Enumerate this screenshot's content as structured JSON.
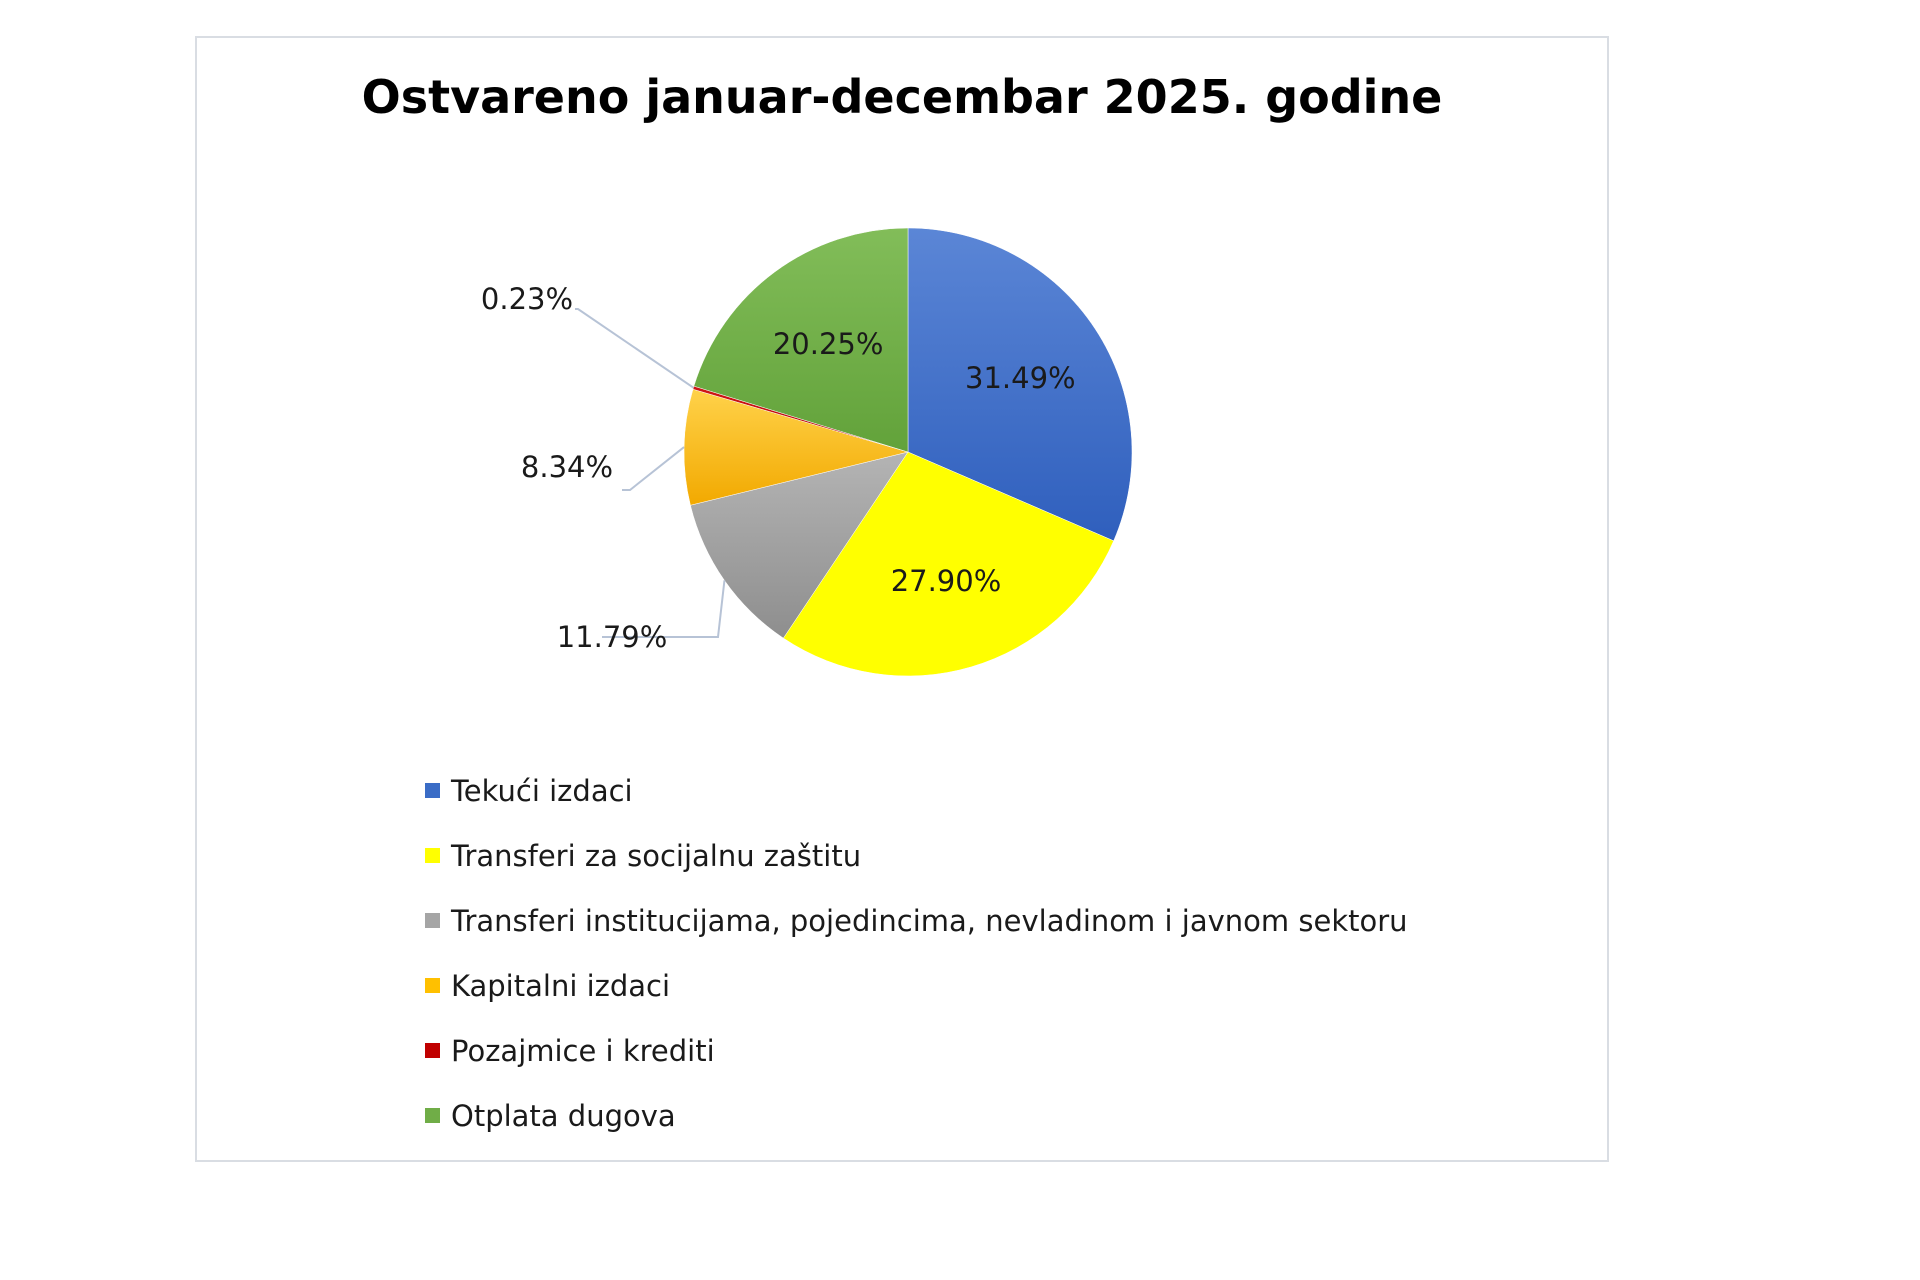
{
  "chart_data": {
    "type": "pie",
    "title": "Ostvareno januar-decembar 2025. godine",
    "slices": [
      {
        "label": "Tekući izdaci",
        "value": 31.49,
        "value_label": "31.49%",
        "color": "#3a6cc6"
      },
      {
        "label": "Transferi za socijalnu zaštitu",
        "value": 27.9,
        "value_label": "27.90%",
        "color": "#ffff00"
      },
      {
        "label": "Transferi institucijama, pojedincima, nevladinom i javnom sektoru",
        "value": 11.79,
        "value_label": "11.79%",
        "color": "#a5a5a5"
      },
      {
        "label": "Kapitalni izdaci",
        "value": 8.34,
        "value_label": "8.34%",
        "color": "#ffc000"
      },
      {
        "label": "Pozajmice i krediti",
        "value": 0.23,
        "value_label": "0.23%",
        "color": "#c00000"
      },
      {
        "label": "Otplata dugova",
        "value": 20.25,
        "value_label": "20.25%",
        "color": "#70ad47"
      }
    ],
    "legend_position": "bottom"
  }
}
